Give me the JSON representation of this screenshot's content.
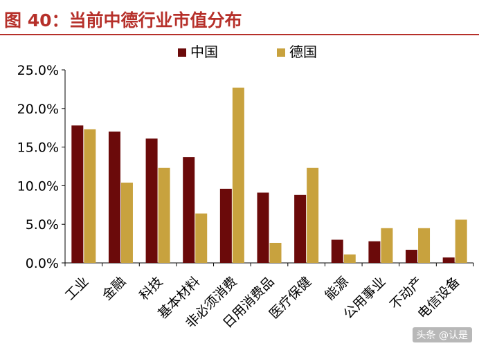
{
  "header": {
    "figure_title": "图 40：当前中德行业市值分布"
  },
  "watermark": "头条 @认是",
  "colors": {
    "title": "#b6302a",
    "china": "#6b0a0a",
    "germany": "#c8a23e",
    "axis": "#000000"
  },
  "chart_data": {
    "type": "bar",
    "title": "图 40：当前中德行业市值分布",
    "categories": [
      "工业",
      "金融",
      "科技",
      "基本材料",
      "非必须消费",
      "日用消费品",
      "医疗保健",
      "能源",
      "公用事业",
      "不动产",
      "电信设备"
    ],
    "series": [
      {
        "name": "中国",
        "color": "#6b0a0a",
        "values": [
          17.8,
          17.0,
          16.1,
          13.7,
          9.6,
          9.1,
          8.8,
          3.0,
          2.8,
          1.7,
          0.7
        ]
      },
      {
        "name": "德国",
        "color": "#c8a23e",
        "values": [
          17.3,
          10.4,
          12.3,
          6.4,
          22.7,
          2.6,
          12.3,
          1.1,
          4.5,
          4.5,
          5.6
        ]
      }
    ],
    "y_ticks": [
      "0.0%",
      "5.0%",
      "10.0%",
      "15.0%",
      "20.0%",
      "25.0%"
    ],
    "ylim": [
      0,
      25
    ],
    "ystep": 5,
    "xlabel": "",
    "ylabel": "",
    "grid": false,
    "legend_position": "top"
  }
}
